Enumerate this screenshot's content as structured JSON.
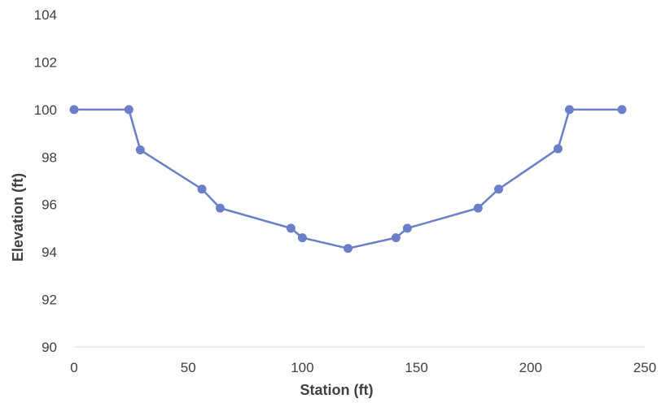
{
  "chart_data": {
    "type": "line",
    "title": "",
    "xlabel": "Station (ft)",
    "ylabel": "Elevation (ft)",
    "xlim": [
      0,
      250
    ],
    "ylim": [
      90,
      104
    ],
    "xticks": [
      0,
      50,
      100,
      150,
      200,
      250
    ],
    "yticks": [
      90,
      92,
      94,
      96,
      98,
      100,
      102,
      104
    ],
    "grid": false,
    "legend": "none",
    "series": [
      {
        "color": "#6b7fc8",
        "markers": true,
        "x": [
          0,
          24,
          29,
          56,
          64,
          95,
          100,
          120,
          141,
          146,
          177,
          186,
          212,
          217,
          240
        ],
        "y": [
          100.0,
          100.0,
          98.3,
          96.65,
          95.85,
          95.0,
          94.6,
          94.15,
          94.6,
          95.0,
          95.85,
          96.65,
          98.35,
          100.0,
          100.0
        ]
      }
    ]
  }
}
